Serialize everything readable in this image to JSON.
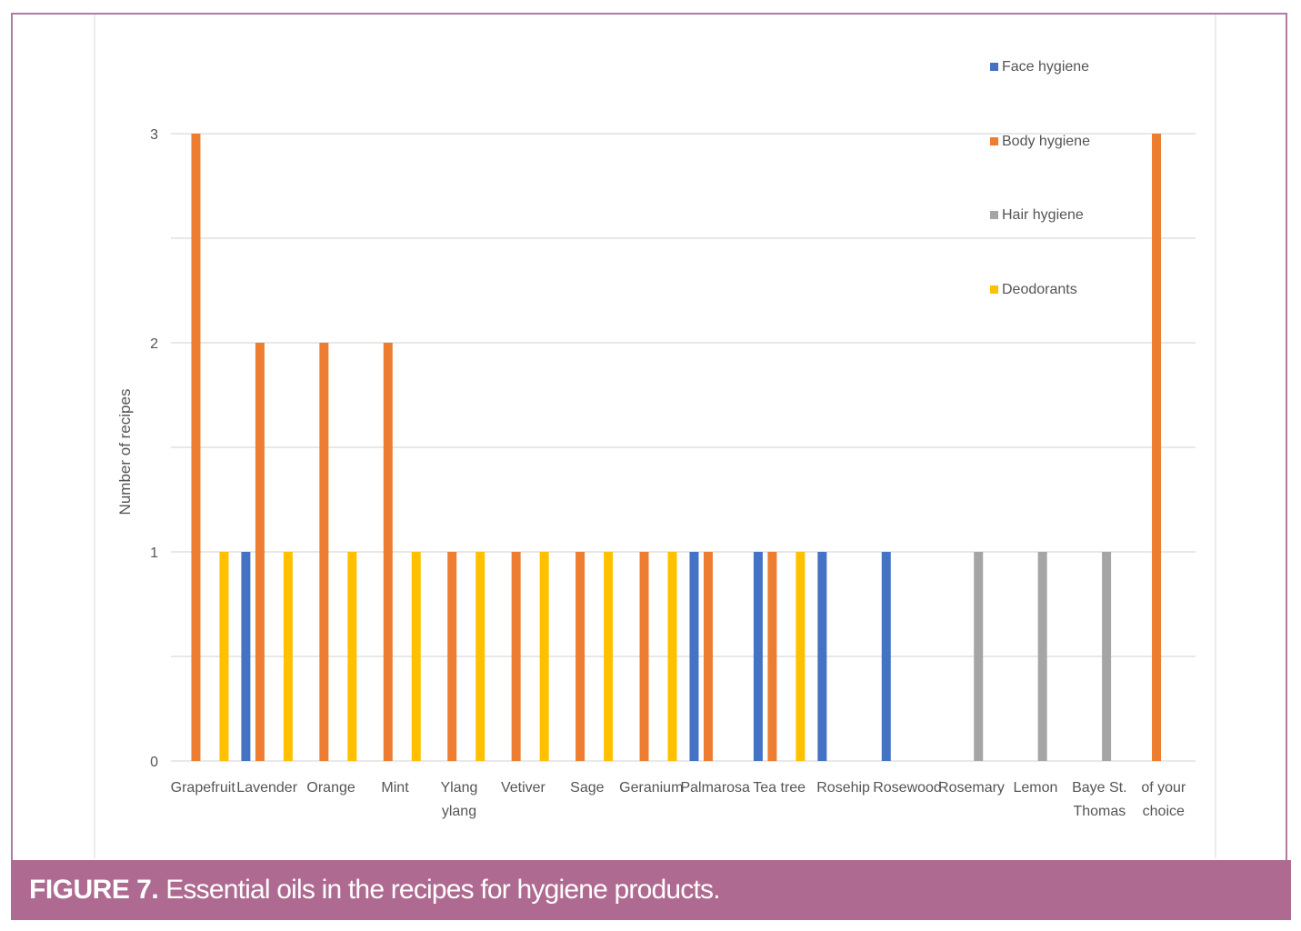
{
  "caption": {
    "label": "FIGURE 7.",
    "text": "Essential oils in the recipes for hygiene products."
  },
  "colors": {
    "face": "#4472c4",
    "body": "#ed7d31",
    "hair": "#a5a5a5",
    "deo": "#ffc000",
    "frame": "#b07aa1",
    "caption_bg": "#ae6a90"
  },
  "chart_data": {
    "type": "bar",
    "title": "",
    "xlabel": "",
    "ylabel": "Number of recipes",
    "ylim": [
      0,
      3
    ],
    "yticks": [
      0,
      1,
      2,
      3
    ],
    "grid": true,
    "legend_position": "top-right",
    "categories": [
      "Grapefruit",
      "Lavender",
      "Orange",
      "Mint",
      "Ylang ylang",
      "Vetiver",
      "Sage",
      "Geranium",
      "Palmarosa",
      "Tea tree",
      "Rosehip",
      "Rosewood",
      "Rosemary",
      "Lemon",
      "Baye St. Thomas",
      "of your choice"
    ],
    "category_lines": [
      [
        "Grapefruit"
      ],
      [
        "Lavender"
      ],
      [
        "Orange"
      ],
      [
        "Mint"
      ],
      [
        "Ylang",
        "ylang"
      ],
      [
        "Vetiver"
      ],
      [
        "Sage"
      ],
      [
        "Geranium"
      ],
      [
        "Palmarosa"
      ],
      [
        "Tea tree"
      ],
      [
        "Rosehip"
      ],
      [
        "Rosewood"
      ],
      [
        "Rosemary"
      ],
      [
        "Lemon"
      ],
      [
        "Baye St.",
        "Thomas"
      ],
      [
        "of your",
        "choice"
      ]
    ],
    "series": [
      {
        "name": "Face hygiene",
        "color": "#4472c4",
        "values": [
          0,
          1,
          0,
          0,
          0,
          0,
          0,
          0,
          1,
          1,
          1,
          1,
          0,
          0,
          0,
          0
        ]
      },
      {
        "name": "Body hygiene",
        "color": "#ed7d31",
        "values": [
          3,
          2,
          2,
          2,
          1,
          1,
          1,
          1,
          1,
          1,
          0,
          0,
          0,
          0,
          0,
          3
        ]
      },
      {
        "name": "Hair hygiene",
        "color": "#a5a5a5",
        "values": [
          0,
          0,
          0,
          0,
          0,
          0,
          0,
          0,
          0,
          0,
          0,
          0,
          1,
          1,
          1,
          0
        ]
      },
      {
        "name": "Deodorants",
        "color": "#ffc000",
        "values": [
          1,
          1,
          1,
          1,
          1,
          1,
          1,
          1,
          0,
          1,
          0,
          0,
          0,
          0,
          0,
          0
        ]
      }
    ]
  }
}
